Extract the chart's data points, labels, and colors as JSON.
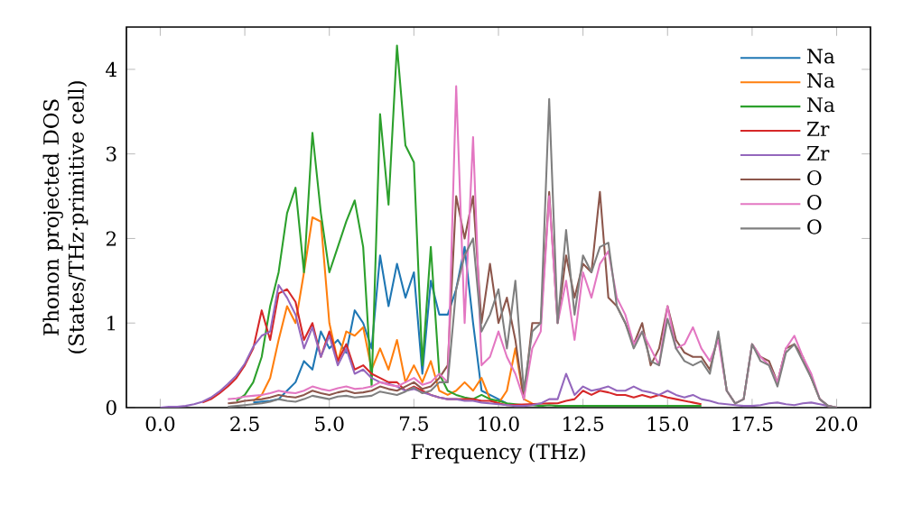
{
  "chart_data": {
    "type": "line",
    "xlabel": "Frequency (THz)",
    "ylabel": "Phonon projected DOS (States/THz·primitive cell)",
    "xlim": [
      -1,
      21
    ],
    "ylim": [
      0,
      4.5
    ],
    "xticks": [
      {
        "value": 0,
        "label": "0.0"
      },
      {
        "value": 2.5,
        "label": "2.5"
      },
      {
        "value": 5,
        "label": "5.0"
      },
      {
        "value": 7.5,
        "label": "7.5"
      },
      {
        "value": 10,
        "label": "10.0"
      },
      {
        "value": 12.5,
        "label": "12.5"
      },
      {
        "value": 15,
        "label": "15.0"
      },
      {
        "value": 17.5,
        "label": "17.5"
      },
      {
        "value": 20,
        "label": "20.0"
      }
    ],
    "yticks": [
      0,
      1,
      2,
      3,
      4
    ],
    "legend": "top right",
    "grid": false,
    "marker": "none",
    "line_style": "solid",
    "x": [
      0,
      0.25,
      0.5,
      0.75,
      1,
      1.25,
      1.5,
      1.75,
      2,
      2.25,
      2.5,
      2.75,
      3,
      3.25,
      3.5,
      3.75,
      4,
      4.25,
      4.5,
      4.75,
      5,
      5.25,
      5.5,
      5.75,
      6,
      6.25,
      6.5,
      6.75,
      7,
      7.25,
      7.5,
      7.75,
      8,
      8.25,
      8.5,
      8.75,
      9,
      9.25,
      9.5,
      9.75,
      10,
      10.25,
      10.5,
      10.75,
      11,
      11.25,
      11.5,
      11.75,
      12,
      12.25,
      12.5,
      12.75,
      13,
      13.25,
      13.5,
      13.75,
      14,
      14.25,
      14.5,
      14.75,
      15,
      15.25,
      15.5,
      15.75,
      16,
      16.25,
      16.5,
      16.75,
      17,
      17.25,
      17.5,
      17.75,
      18,
      18.25,
      18.5,
      18.75,
      19,
      19.25,
      19.5,
      19.75,
      20
    ],
    "series": [
      {
        "name": "Na",
        "color": "#1f77b4",
        "values": [
          null,
          null,
          null,
          null,
          null,
          null,
          null,
          null,
          null,
          null,
          null,
          0.06,
          0.07,
          0.08,
          0.1,
          0.2,
          0.3,
          0.55,
          0.45,
          0.9,
          0.7,
          0.8,
          0.65,
          1.15,
          1.0,
          0.7,
          1.8,
          1.2,
          1.7,
          1.3,
          1.6,
          0.4,
          1.5,
          1.1,
          1.1,
          1.4,
          1.9,
          1.0,
          0.2,
          0.15,
          0.1,
          0.05,
          null,
          null,
          null,
          null,
          null,
          null,
          null,
          null,
          null,
          null,
          null,
          null,
          null,
          null,
          null,
          null,
          null,
          null,
          null,
          null,
          null,
          null,
          null,
          null,
          null,
          null,
          null,
          null,
          null,
          null,
          null,
          null,
          null,
          null,
          null,
          null,
          null,
          null,
          null
        ]
      },
      {
        "name": "Na",
        "color": "#ff7f0e",
        "values": [
          null,
          null,
          null,
          null,
          null,
          null,
          null,
          null,
          null,
          null,
          null,
          0.08,
          0.15,
          0.35,
          0.8,
          1.2,
          1.0,
          1.6,
          2.25,
          2.2,
          1.0,
          0.55,
          0.9,
          0.85,
          0.95,
          0.45,
          0.7,
          0.45,
          0.8,
          0.3,
          0.5,
          0.3,
          0.55,
          0.2,
          0.15,
          0.2,
          0.3,
          0.2,
          0.35,
          0.1,
          0.05,
          0.2,
          0.7,
          0.1,
          0.05,
          null,
          null,
          null,
          null,
          null,
          null,
          null,
          null,
          null,
          null,
          null,
          null,
          null,
          null,
          null,
          null,
          null,
          null,
          null,
          null,
          null,
          null,
          null,
          null,
          null,
          null,
          null,
          null,
          null,
          null,
          null,
          null,
          null,
          null,
          null,
          null
        ]
      },
      {
        "name": "Na",
        "color": "#2ca02c",
        "values": [
          null,
          null,
          null,
          null,
          null,
          null,
          null,
          null,
          null,
          0.08,
          0.15,
          0.3,
          0.6,
          1.2,
          1.6,
          2.3,
          2.6,
          1.6,
          3.25,
          2.3,
          1.6,
          1.9,
          2.2,
          2.45,
          1.9,
          0.25,
          3.47,
          2.4,
          4.28,
          3.1,
          2.9,
          0.5,
          1.9,
          0.4,
          0.2,
          0.15,
          0.12,
          0.1,
          0.15,
          0.1,
          0.08,
          0.05,
          0.04,
          0.03,
          0.03,
          0.02,
          0.03,
          0.02,
          0.02,
          0.02,
          0.02,
          0.02,
          0.02,
          0.02,
          0.02,
          0.02,
          0.02,
          0.02,
          0.02,
          0.02,
          0.02,
          0.02,
          0.02,
          0.02,
          0.02,
          null,
          null,
          null,
          null,
          null,
          null,
          null,
          null,
          null,
          null,
          null,
          null,
          null,
          null,
          null,
          null
        ]
      },
      {
        "name": "Zr",
        "color": "#d62728",
        "values": [
          null,
          null,
          null,
          null,
          null,
          0.06,
          0.1,
          0.17,
          0.25,
          0.35,
          0.5,
          0.7,
          1.15,
          0.8,
          1.35,
          1.4,
          1.25,
          0.8,
          1.0,
          0.6,
          0.9,
          0.55,
          0.75,
          0.45,
          0.5,
          0.4,
          0.35,
          0.3,
          0.3,
          0.2,
          0.25,
          0.2,
          0.15,
          0.12,
          0.1,
          0.1,
          0.1,
          0.1,
          0.08,
          0.08,
          0.05,
          0.03,
          null,
          null,
          null,
          null,
          0.05,
          0.05,
          0.08,
          0.1,
          0.2,
          0.15,
          0.2,
          0.18,
          0.15,
          0.15,
          0.12,
          0.15,
          0.12,
          0.15,
          0.12,
          0.1,
          0.08,
          0.06,
          0.04,
          null,
          null,
          null,
          null,
          null,
          null,
          null,
          null,
          null,
          null,
          null,
          null,
          null,
          null,
          null,
          null
        ]
      },
      {
        "name": "Zr",
        "color": "#9467bd",
        "values": [
          0,
          0.01,
          0.01,
          0.02,
          0.04,
          0.07,
          0.12,
          0.19,
          0.28,
          0.38,
          0.52,
          0.72,
          0.85,
          0.9,
          1.45,
          1.3,
          1.1,
          0.7,
          0.95,
          0.6,
          0.85,
          0.5,
          0.7,
          0.4,
          0.45,
          0.35,
          0.3,
          0.28,
          0.25,
          0.2,
          0.22,
          0.18,
          0.15,
          0.12,
          0.1,
          0.1,
          0.08,
          0.08,
          0.06,
          0.05,
          0.04,
          0.03,
          0.02,
          0.02,
          0.03,
          0.05,
          0.1,
          0.1,
          0.4,
          0.15,
          0.25,
          0.2,
          0.22,
          0.25,
          0.2,
          0.2,
          0.25,
          0.2,
          0.18,
          0.15,
          0.2,
          0.15,
          0.12,
          0.15,
          0.1,
          0.08,
          0.05,
          0.04,
          0.03,
          0.02,
          0.02,
          0.03,
          0.05,
          0.06,
          0.04,
          0.03,
          0.05,
          0.06,
          0.04,
          0.02,
          0
        ]
      },
      {
        "name": "O",
        "color": "#8c564b",
        "values": [
          null,
          null,
          null,
          null,
          null,
          null,
          null,
          null,
          0.05,
          0.06,
          0.08,
          0.09,
          0.1,
          0.12,
          0.15,
          0.13,
          0.12,
          0.15,
          0.2,
          0.17,
          0.15,
          0.18,
          0.2,
          0.17,
          0.18,
          0.2,
          0.25,
          0.22,
          0.2,
          0.25,
          0.3,
          0.22,
          0.25,
          0.35,
          0.5,
          2.5,
          2.0,
          2.5,
          1.0,
          1.7,
          1.0,
          1.3,
          0.8,
          0.1,
          1.0,
          1.0,
          2.55,
          1.0,
          1.8,
          1.3,
          1.7,
          1.6,
          2.55,
          1.3,
          1.2,
          1.0,
          0.75,
          1.0,
          0.5,
          0.7,
          1.2,
          0.8,
          0.65,
          0.6,
          0.6,
          0.45,
          0.85,
          0.2,
          0.05,
          0.1,
          0.75,
          0.6,
          0.55,
          0.3,
          0.7,
          0.75,
          0.6,
          0.35,
          0.1,
          0.02,
          0
        ]
      },
      {
        "name": "O",
        "color": "#e377c2",
        "values": [
          null,
          null,
          null,
          null,
          null,
          null,
          null,
          null,
          0.1,
          0.11,
          0.13,
          0.14,
          0.15,
          0.17,
          0.2,
          0.18,
          0.17,
          0.2,
          0.25,
          0.22,
          0.2,
          0.23,
          0.25,
          0.22,
          0.23,
          0.25,
          0.3,
          0.27,
          0.25,
          0.3,
          0.35,
          0.27,
          0.3,
          0.4,
          0.3,
          3.8,
          1.0,
          3.2,
          0.5,
          0.6,
          0.9,
          0.6,
          0.4,
          0.1,
          0.7,
          0.9,
          2.5,
          1.0,
          1.5,
          0.8,
          1.6,
          1.3,
          1.7,
          1.85,
          1.3,
          1.1,
          0.75,
          0.9,
          0.7,
          0.5,
          1.2,
          0.7,
          0.75,
          0.95,
          0.7,
          0.55,
          0.8,
          0.2,
          0.05,
          0.1,
          0.75,
          0.6,
          0.5,
          0.3,
          0.7,
          0.85,
          0.6,
          0.4,
          0.1,
          0.02,
          0
        ]
      },
      {
        "name": "O",
        "color": "#7f7f7f",
        "values": [
          null,
          null,
          null,
          null,
          null,
          null,
          null,
          null,
          0.01,
          0.02,
          0.03,
          0.04,
          0.05,
          0.07,
          0.1,
          0.08,
          0.07,
          0.1,
          0.14,
          0.12,
          0.1,
          0.13,
          0.14,
          0.12,
          0.13,
          0.14,
          0.19,
          0.17,
          0.15,
          0.19,
          0.24,
          0.17,
          0.2,
          0.3,
          0.3,
          1.4,
          1.8,
          2.0,
          0.9,
          1.1,
          1.4,
          0.7,
          1.5,
          0.2,
          0.9,
          1.0,
          3.65,
          1.0,
          2.1,
          1.1,
          1.8,
          1.6,
          1.9,
          1.95,
          1.2,
          1.0,
          0.7,
          0.9,
          0.55,
          0.5,
          1.05,
          0.7,
          0.55,
          0.5,
          0.55,
          0.4,
          0.9,
          0.2,
          0.05,
          0.1,
          0.75,
          0.55,
          0.5,
          0.25,
          0.65,
          0.75,
          0.55,
          0.35,
          0.1,
          0.02,
          0
        ]
      }
    ]
  }
}
